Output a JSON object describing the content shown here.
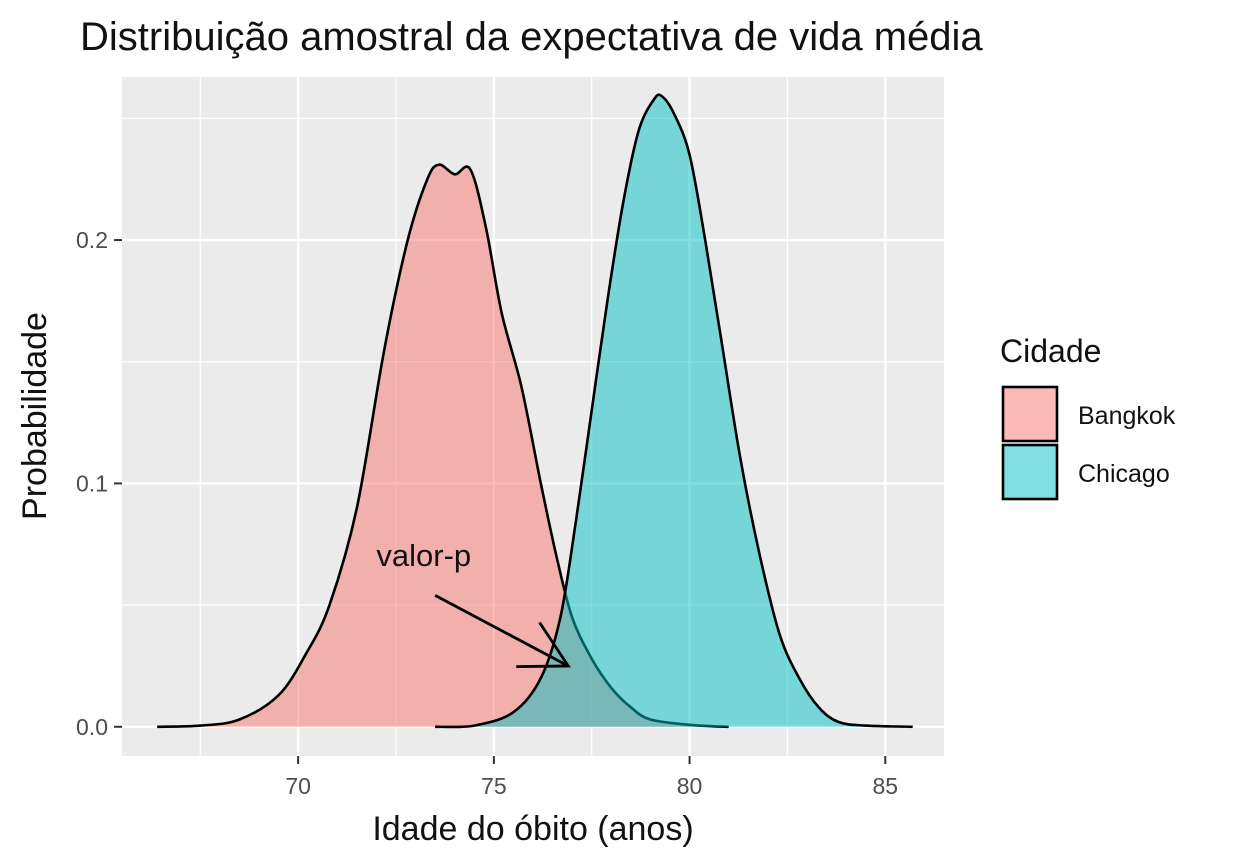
{
  "chart_data": {
    "type": "area",
    "title": "Distribuição amostral da expectativa de vida média",
    "xlabel": "Idade do óbito (anos)",
    "ylabel": "Probabilidade",
    "xlim": [
      65.5,
      86.5
    ],
    "ylim": [
      -0.012,
      0.267
    ],
    "x_ticks": [
      70,
      75,
      80,
      85
    ],
    "x_tick_labels": [
      "70",
      "75",
      "80",
      "85"
    ],
    "y_ticks": [
      0.0,
      0.1,
      0.2
    ],
    "y_tick_labels": [
      "0.0",
      "0.1",
      "0.2"
    ],
    "grid": true,
    "legend": {
      "title": "Cidade",
      "position": "right"
    },
    "series": [
      {
        "name": "Bangkok",
        "color": "#F8766D",
        "points": [
          [
            66.4,
            0.0
          ],
          [
            67.5,
            0.0005
          ],
          [
            68.5,
            0.003
          ],
          [
            69.5,
            0.013
          ],
          [
            70.2,
            0.03
          ],
          [
            70.8,
            0.05
          ],
          [
            71.5,
            0.09
          ],
          [
            72.2,
            0.155
          ],
          [
            72.8,
            0.2
          ],
          [
            73.3,
            0.225
          ],
          [
            73.6,
            0.231
          ],
          [
            74.0,
            0.227
          ],
          [
            74.4,
            0.229
          ],
          [
            74.8,
            0.205
          ],
          [
            75.2,
            0.17
          ],
          [
            75.7,
            0.14
          ],
          [
            76.2,
            0.1
          ],
          [
            76.6,
            0.07
          ],
          [
            77.0,
            0.045
          ],
          [
            77.5,
            0.028
          ],
          [
            78.0,
            0.016
          ],
          [
            78.5,
            0.008
          ],
          [
            79.0,
            0.003
          ],
          [
            80.0,
            0.0008
          ],
          [
            81.0,
            0.0
          ]
        ]
      },
      {
        "name": "Chicago",
        "color": "#00BFC4",
        "points": [
          [
            73.5,
            0.0
          ],
          [
            74.5,
            0.0005
          ],
          [
            75.5,
            0.006
          ],
          [
            76.2,
            0.02
          ],
          [
            76.7,
            0.045
          ],
          [
            77.1,
            0.085
          ],
          [
            77.5,
            0.13
          ],
          [
            77.9,
            0.175
          ],
          [
            78.3,
            0.215
          ],
          [
            78.7,
            0.245
          ],
          [
            79.1,
            0.258
          ],
          [
            79.3,
            0.259
          ],
          [
            79.6,
            0.252
          ],
          [
            80.0,
            0.235
          ],
          [
            80.4,
            0.2
          ],
          [
            80.8,
            0.16
          ],
          [
            81.3,
            0.11
          ],
          [
            81.8,
            0.07
          ],
          [
            82.3,
            0.038
          ],
          [
            82.8,
            0.02
          ],
          [
            83.3,
            0.008
          ],
          [
            83.8,
            0.002
          ],
          [
            84.5,
            0.0005
          ],
          [
            85.7,
            0.0
          ]
        ]
      }
    ],
    "annotations": [
      {
        "text": "valor-p",
        "x": 72.0,
        "y": 0.066,
        "arrow_from": [
          73.5,
          0.054
        ],
        "arrow_to": [
          76.9,
          0.025
        ]
      }
    ]
  }
}
